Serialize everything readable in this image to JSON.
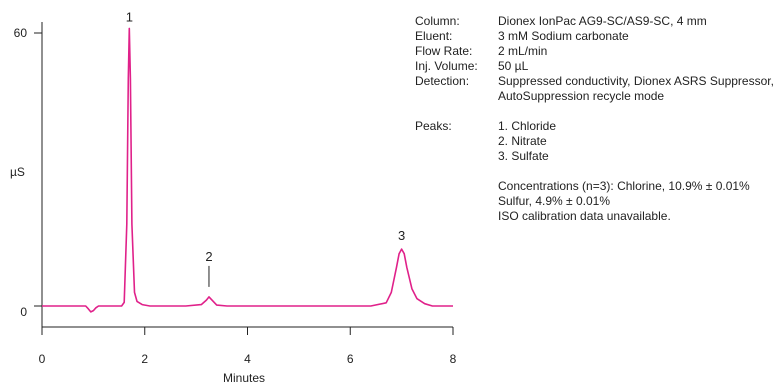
{
  "info": {
    "conditions": [
      {
        "label": "Column:",
        "value": [
          "Dionex IonPac AG9-SC/AS9-SC, 4 mm"
        ]
      },
      {
        "label": "Eluent:",
        "value": [
          "3 mM Sodium carbonate"
        ]
      },
      {
        "label": "Flow Rate:",
        "value": [
          "2 mL/min"
        ]
      },
      {
        "label": "Inj. Volume:",
        "value": [
          "50 µL"
        ]
      },
      {
        "label": "Detection:",
        "value": [
          "Suppressed conductivity, Dionex ASRS Suppressor,",
          "AutoSuppression recycle mode"
        ]
      }
    ],
    "peaks_label": "Peaks:",
    "peaks": [
      "1. Chloride",
      "2. Nitrate",
      "3. Sulfate"
    ],
    "notes": [
      "Concentrations (n=3): Chlorine, 10.9% ± 0.01%",
      "Sulfur, 4.9% ± 0.01%",
      "ISO calibration data unavailable."
    ]
  },
  "chart_data": {
    "type": "line",
    "xlabel": "Minutes",
    "ylabel": "µS",
    "xlim": [
      0,
      8
    ],
    "ylim": [
      -4,
      64
    ],
    "x_ticks": [
      0,
      2,
      4,
      6,
      8
    ],
    "y_ticks": [
      0,
      60
    ],
    "line_color": "#e0218a",
    "peaks": [
      {
        "label": "1",
        "x": 1.7,
        "y": 61
      },
      {
        "label": "2",
        "x": 3.25,
        "y": 2.0
      },
      {
        "label": "3",
        "x": 7.0,
        "y": 12.5
      }
    ],
    "series": [
      {
        "x": [
          0,
          0.85,
          0.9,
          0.95,
          1.0,
          1.05,
          1.1,
          1.2,
          1.4,
          1.55,
          1.6,
          1.65,
          1.68,
          1.7,
          1.72,
          1.75,
          1.8,
          1.85,
          1.95,
          2.1,
          2.4,
          2.8,
          3.1,
          3.2,
          3.25,
          3.3,
          3.4,
          3.6,
          4.5,
          5.5,
          6.4,
          6.7,
          6.8,
          6.9,
          6.95,
          7.0,
          7.05,
          7.1,
          7.2,
          7.3,
          7.45,
          7.6,
          8.0
        ],
        "y": [
          0,
          0,
          -0.6,
          -1.3,
          -1.0,
          -0.4,
          0,
          0,
          0,
          0,
          0.8,
          18,
          50,
          61,
          50,
          18,
          3,
          1,
          0.3,
          0,
          0,
          0,
          0.3,
          1.3,
          2.0,
          1.4,
          0.2,
          0,
          0,
          0,
          0,
          0.7,
          3.0,
          8.5,
          11.5,
          12.5,
          11.5,
          8.5,
          3.8,
          1.6,
          0.5,
          0,
          0
        ]
      }
    ]
  }
}
